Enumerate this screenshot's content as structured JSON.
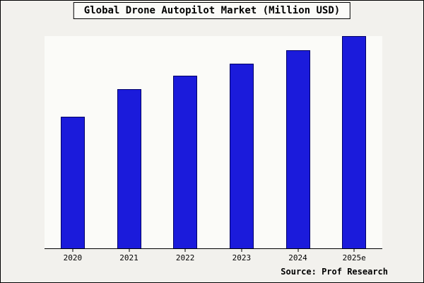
{
  "chart_data": {
    "type": "bar",
    "title": "Global Drone Autopilot Market (Million USD)",
    "categories": [
      "2020",
      "2021",
      "2022",
      "2023",
      "2024",
      "2025e"
    ],
    "values": [
      62,
      75,
      81.5,
      87,
      93.5,
      100
    ],
    "xlabel": "",
    "ylabel": "",
    "ylim": [
      0,
      100
    ],
    "grid": false,
    "legend": false,
    "bar_color": "#1b1bdb",
    "bar_edge_color": "#000066"
  },
  "source": "Source: Prof Research",
  "colors": {
    "outer_bg": "#f2f1ed",
    "plot_bg": "#fbfbf8",
    "frame_border": "#000000"
  }
}
